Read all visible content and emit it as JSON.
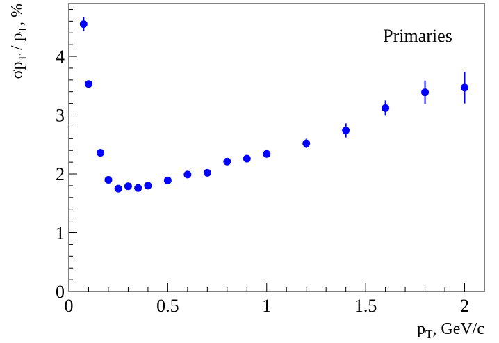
{
  "chart_data": {
    "type": "scatter",
    "annotation": "Primaries",
    "xlabel": {
      "base": "p",
      "sub": "T",
      "suffix": ", GeV/c"
    },
    "ylabel": {
      "sigma": "σ",
      "p1": "p",
      "sub1": "T",
      "slash": " / p",
      "sub2": "T",
      "suffix": ", %"
    },
    "xlim": [
      0,
      2.1
    ],
    "ylim": [
      0,
      4.9
    ],
    "x_ticks": [
      "0",
      "0.5",
      "1",
      "1.5",
      "2"
    ],
    "x_tick_values": [
      0,
      0.5,
      1,
      1.5,
      2
    ],
    "y_ticks": [
      "0",
      "1",
      "2",
      "3",
      "4"
    ],
    "y_tick_values": [
      0,
      1,
      2,
      3,
      4
    ],
    "marker_color": "#0000ff",
    "grid": false,
    "points": [
      {
        "x": 0.075,
        "y": 4.55,
        "err": 0.12
      },
      {
        "x": 0.1,
        "y": 3.53,
        "err": 0.05
      },
      {
        "x": 0.16,
        "y": 2.36,
        "err": 0.04
      },
      {
        "x": 0.2,
        "y": 1.9,
        "err": 0.04
      },
      {
        "x": 0.25,
        "y": 1.75,
        "err": 0.04
      },
      {
        "x": 0.3,
        "y": 1.79,
        "err": 0.04
      },
      {
        "x": 0.35,
        "y": 1.76,
        "err": 0.04
      },
      {
        "x": 0.4,
        "y": 1.8,
        "err": 0.04
      },
      {
        "x": 0.5,
        "y": 1.89,
        "err": 0.04
      },
      {
        "x": 0.6,
        "y": 1.99,
        "err": 0.04
      },
      {
        "x": 0.7,
        "y": 2.02,
        "err": 0.05
      },
      {
        "x": 0.8,
        "y": 2.21,
        "err": 0.05
      },
      {
        "x": 0.9,
        "y": 2.26,
        "err": 0.05
      },
      {
        "x": 1.0,
        "y": 2.34,
        "err": 0.06
      },
      {
        "x": 1.2,
        "y": 2.52,
        "err": 0.08
      },
      {
        "x": 1.4,
        "y": 2.74,
        "err": 0.12
      },
      {
        "x": 1.6,
        "y": 3.12,
        "err": 0.13
      },
      {
        "x": 1.8,
        "y": 3.39,
        "err": 0.2
      },
      {
        "x": 2.0,
        "y": 3.47,
        "err": 0.27
      }
    ]
  }
}
